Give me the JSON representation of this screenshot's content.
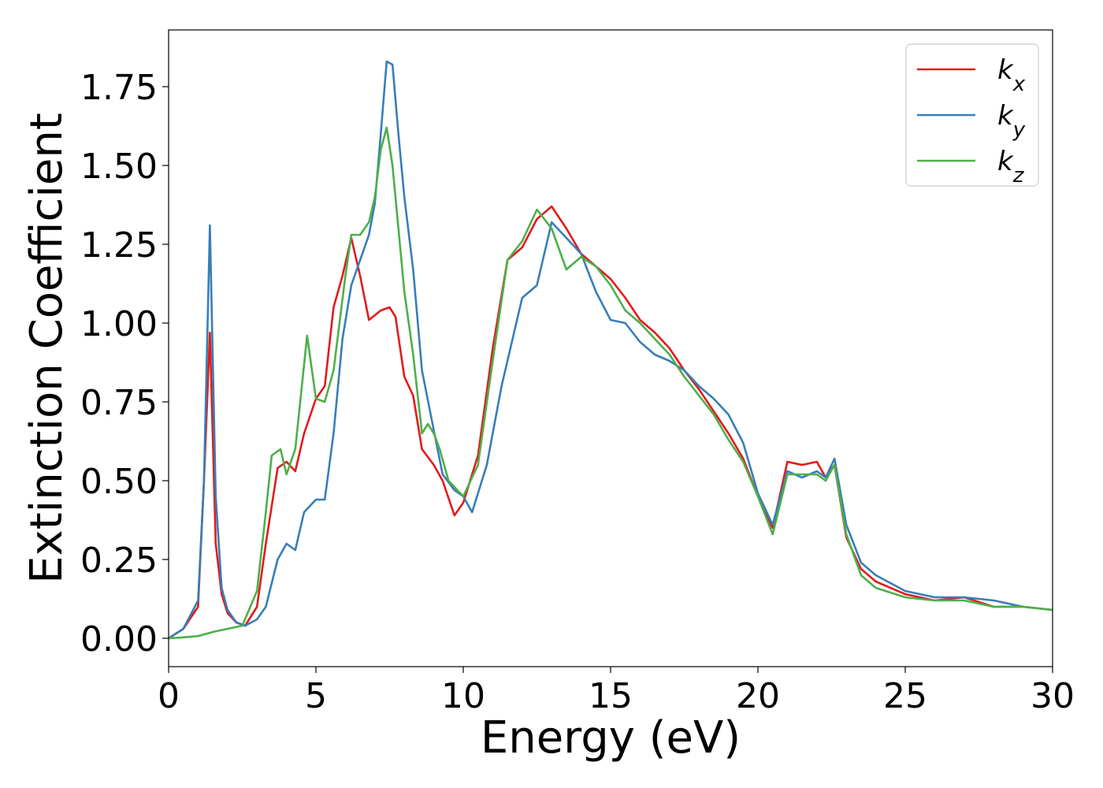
{
  "chart_data": {
    "type": "line",
    "title": "",
    "xlabel": "Energy (eV)",
    "ylabel": "Extinction Coefficient",
    "xlim": [
      0,
      30
    ],
    "ylim": [
      -0.09,
      1.93
    ],
    "xticks": [
      0,
      5,
      10,
      15,
      20,
      25,
      30
    ],
    "yticks": [
      0.0,
      0.25,
      0.5,
      0.75,
      1.0,
      1.25,
      1.5,
      1.75
    ],
    "xtick_labels": [
      "0",
      "5",
      "10",
      "15",
      "20",
      "25",
      "30"
    ],
    "ytick_labels": [
      "0.00",
      "0.25",
      "0.50",
      "0.75",
      "1.00",
      "1.25",
      "1.50",
      "1.75"
    ],
    "grid": false,
    "legend": "top-right",
    "series": [
      {
        "name": "k_x",
        "label_base": "k",
        "label_sub": "x",
        "color": "#e41a1c",
        "x": [
          0,
          0.5,
          1.0,
          1.2,
          1.4,
          1.6,
          1.8,
          2.0,
          2.3,
          2.6,
          3.0,
          3.3,
          3.7,
          4.0,
          4.3,
          4.6,
          5.0,
          5.3,
          5.6,
          5.9,
          6.2,
          6.5,
          6.8,
          7.2,
          7.5,
          7.7,
          8.0,
          8.3,
          8.6,
          9.0,
          9.3,
          9.7,
          10.0,
          10.5,
          11.0,
          11.5,
          12.0,
          12.5,
          13.0,
          13.5,
          14.0,
          14.5,
          15.0,
          15.5,
          16.0,
          16.5,
          17.0,
          17.5,
          18.0,
          18.5,
          19.0,
          19.5,
          20.0,
          20.5,
          21.0,
          21.5,
          22.0,
          22.3,
          22.6,
          23.0,
          23.5,
          24.0,
          25.0,
          26.0,
          27.0,
          28.0,
          29.0,
          30.0
        ],
        "y": [
          0.0,
          0.03,
          0.1,
          0.5,
          0.97,
          0.3,
          0.14,
          0.08,
          0.05,
          0.04,
          0.1,
          0.3,
          0.54,
          0.56,
          0.53,
          0.65,
          0.76,
          0.8,
          1.05,
          1.15,
          1.27,
          1.15,
          1.01,
          1.04,
          1.05,
          1.02,
          0.83,
          0.77,
          0.6,
          0.55,
          0.5,
          0.39,
          0.43,
          0.58,
          0.92,
          1.2,
          1.24,
          1.33,
          1.37,
          1.3,
          1.22,
          1.18,
          1.14,
          1.08,
          1.01,
          0.97,
          0.92,
          0.85,
          0.79,
          0.72,
          0.65,
          0.57,
          0.45,
          0.35,
          0.56,
          0.55,
          0.56,
          0.51,
          0.55,
          0.32,
          0.22,
          0.18,
          0.14,
          0.12,
          0.13,
          0.1,
          0.1,
          0.09
        ]
      },
      {
        "name": "k_y",
        "label_base": "k",
        "label_sub": "y",
        "color": "#377eb8",
        "x": [
          0,
          0.5,
          1.0,
          1.2,
          1.4,
          1.6,
          1.8,
          2.0,
          2.3,
          2.6,
          3.0,
          3.3,
          3.7,
          4.0,
          4.3,
          4.6,
          5.0,
          5.3,
          5.6,
          5.9,
          6.2,
          6.5,
          6.8,
          7.0,
          7.2,
          7.4,
          7.6,
          7.8,
          8.0,
          8.3,
          8.6,
          9.0,
          9.3,
          9.7,
          10.0,
          10.3,
          10.8,
          11.3,
          12.0,
          12.5,
          13.0,
          13.5,
          14.0,
          14.5,
          15.0,
          15.5,
          16.0,
          16.5,
          17.0,
          17.5,
          18.0,
          18.5,
          19.0,
          19.5,
          20.0,
          20.5,
          21.0,
          21.5,
          22.0,
          22.3,
          22.6,
          23.0,
          23.5,
          24.0,
          25.0,
          26.0,
          27.0,
          28.0,
          29.0,
          30.0
        ],
        "y": [
          0.0,
          0.03,
          0.12,
          0.5,
          1.31,
          0.45,
          0.16,
          0.09,
          0.05,
          0.04,
          0.06,
          0.1,
          0.25,
          0.3,
          0.28,
          0.4,
          0.44,
          0.44,
          0.65,
          0.95,
          1.12,
          1.2,
          1.28,
          1.38,
          1.6,
          1.83,
          1.82,
          1.6,
          1.4,
          1.17,
          0.85,
          0.66,
          0.52,
          0.47,
          0.45,
          0.4,
          0.55,
          0.8,
          1.08,
          1.12,
          1.32,
          1.27,
          1.22,
          1.1,
          1.01,
          1.0,
          0.94,
          0.9,
          0.88,
          0.85,
          0.8,
          0.76,
          0.71,
          0.62,
          0.46,
          0.36,
          0.53,
          0.51,
          0.53,
          0.51,
          0.57,
          0.36,
          0.24,
          0.2,
          0.15,
          0.13,
          0.13,
          0.12,
          0.1,
          0.09
        ]
      },
      {
        "name": "k_z",
        "label_base": "k",
        "label_sub": "z",
        "color": "#4daf4a",
        "x": [
          0,
          0.5,
          1.0,
          1.5,
          2.0,
          2.5,
          3.0,
          3.3,
          3.5,
          3.8,
          4.0,
          4.3,
          4.7,
          5.0,
          5.3,
          5.6,
          6.0,
          6.2,
          6.5,
          6.8,
          7.0,
          7.2,
          7.4,
          7.6,
          7.8,
          8.0,
          8.3,
          8.6,
          8.8,
          9.0,
          9.2,
          9.5,
          10.0,
          10.5,
          11.0,
          11.5,
          12.0,
          12.5,
          13.0,
          13.5,
          14.0,
          14.5,
          15.0,
          15.5,
          16.0,
          16.5,
          17.0,
          17.5,
          18.0,
          18.5,
          19.0,
          19.5,
          20.0,
          20.5,
          21.0,
          21.5,
          22.0,
          22.3,
          22.6,
          23.0,
          23.5,
          24.0,
          25.0,
          26.0,
          27.0,
          28.0,
          29.0,
          30.0
        ],
        "y": [
          0.0,
          0.003,
          0.007,
          0.02,
          0.03,
          0.04,
          0.15,
          0.4,
          0.58,
          0.6,
          0.52,
          0.6,
          0.96,
          0.76,
          0.75,
          0.85,
          1.15,
          1.28,
          1.28,
          1.32,
          1.4,
          1.55,
          1.62,
          1.5,
          1.3,
          1.1,
          0.9,
          0.65,
          0.68,
          0.65,
          0.6,
          0.5,
          0.45,
          0.55,
          0.88,
          1.2,
          1.26,
          1.36,
          1.3,
          1.17,
          1.21,
          1.18,
          1.12,
          1.04,
          1.0,
          0.95,
          0.9,
          0.83,
          0.77,
          0.71,
          0.63,
          0.56,
          0.45,
          0.33,
          0.52,
          0.52,
          0.52,
          0.5,
          0.55,
          0.33,
          0.2,
          0.16,
          0.13,
          0.12,
          0.12,
          0.1,
          0.1,
          0.09
        ]
      }
    ]
  }
}
